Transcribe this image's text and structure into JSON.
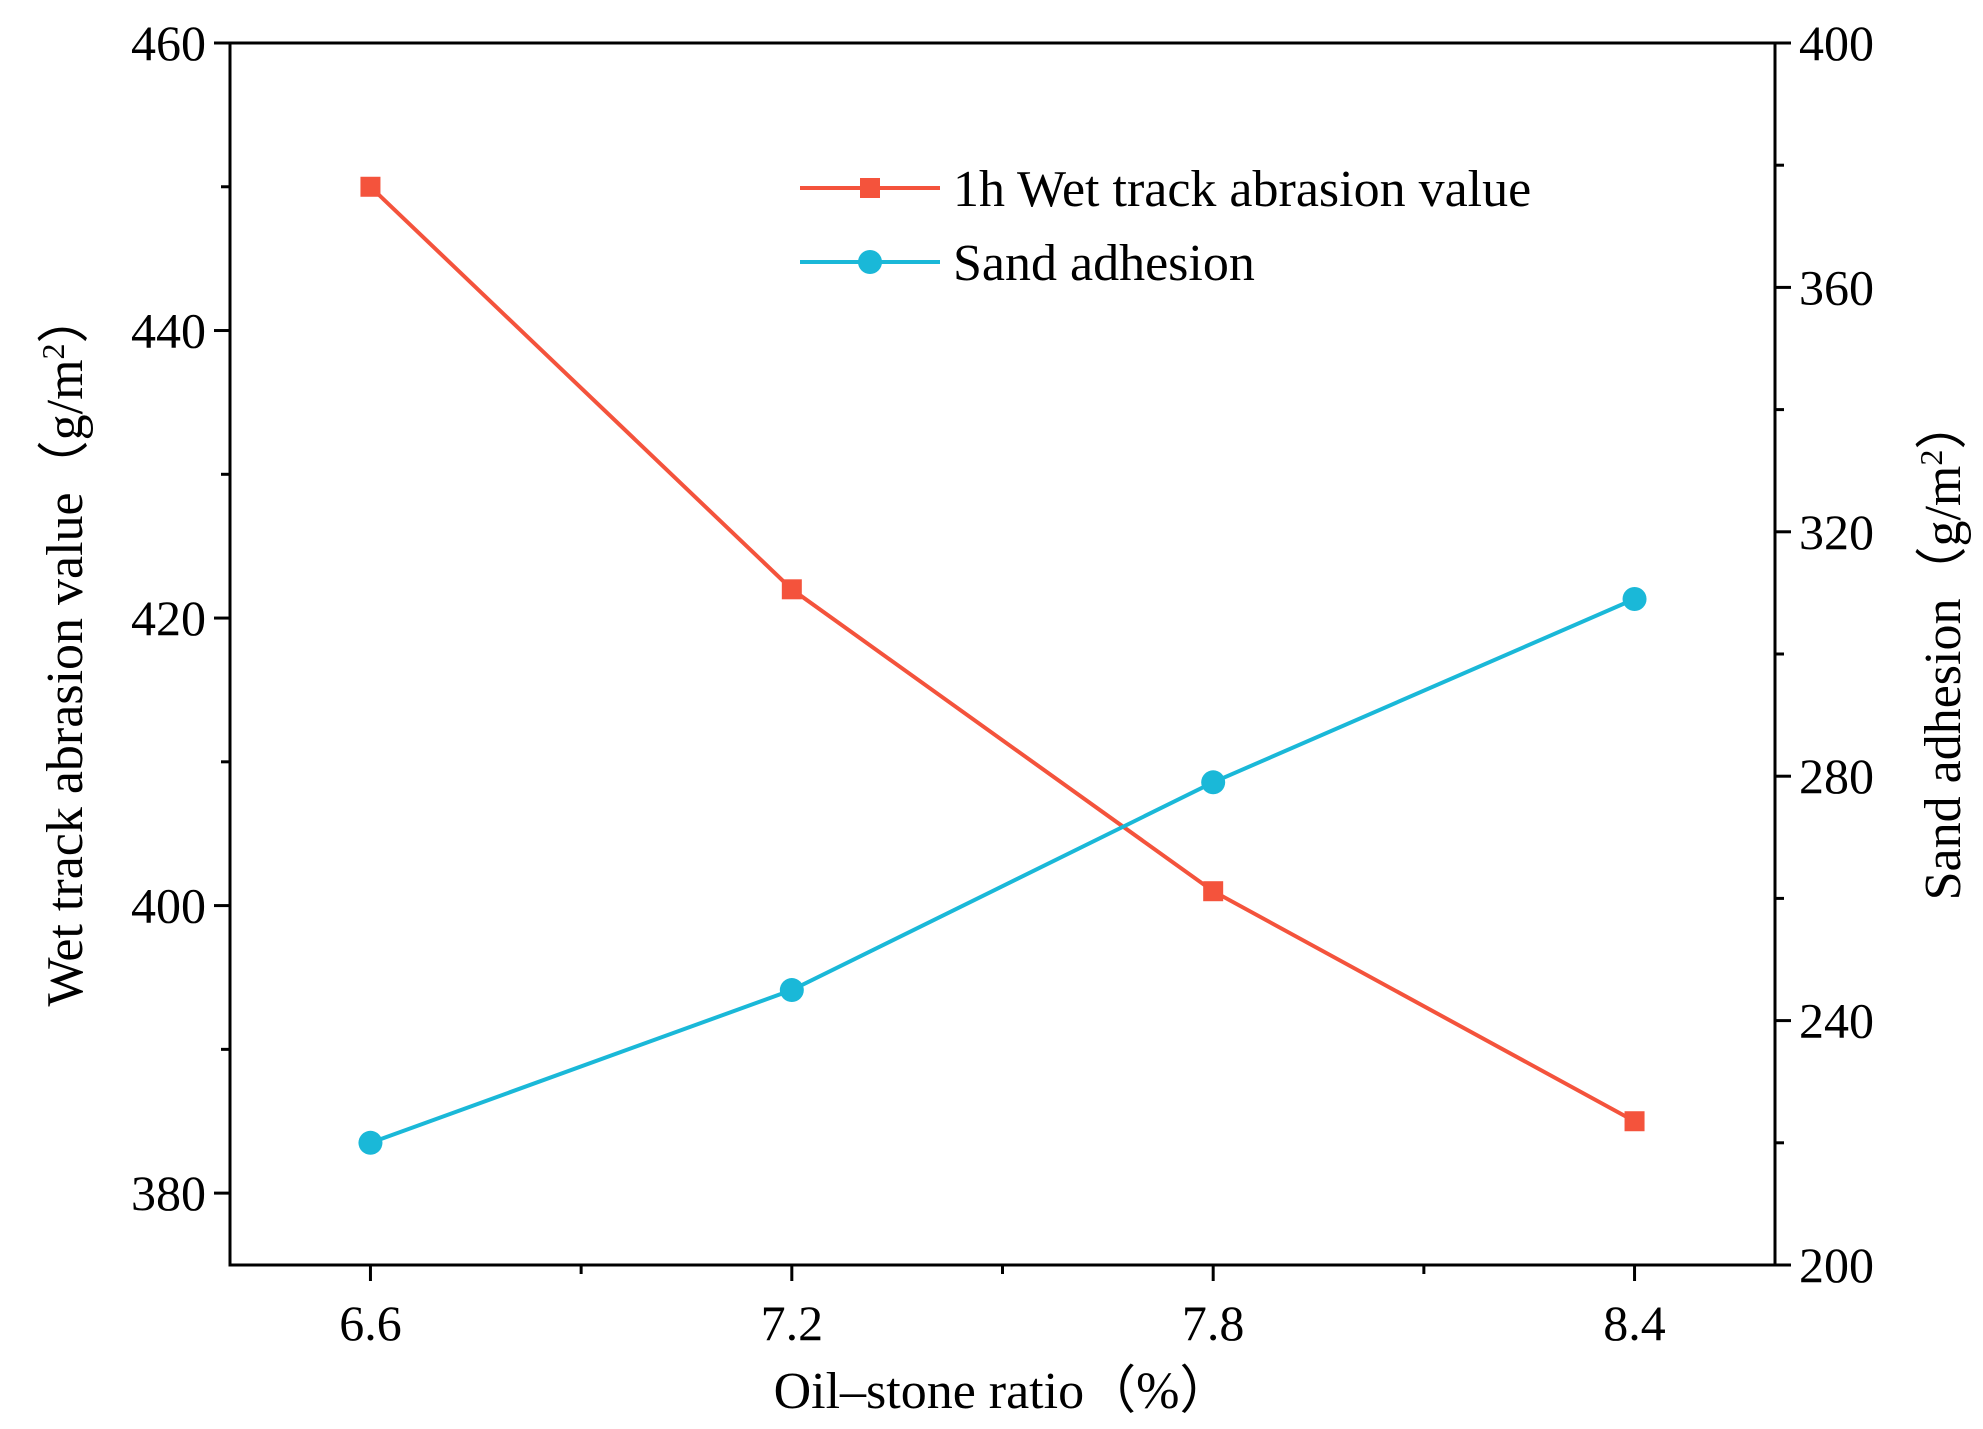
{
  "chart_data": {
    "type": "line",
    "x": [
      6.6,
      7.2,
      7.8,
      8.4
    ],
    "x_tick_labels": [
      "6.6",
      "7.2",
      "7.8",
      "8.4"
    ],
    "xlim": [
      6.4,
      8.6
    ],
    "xlabel": "Oil–stone ratio（%）",
    "left_axis": {
      "label_main": "Wet track abrasion value（g/m",
      "label_sup": "2",
      "label_end": "）",
      "ylim": [
        375,
        460
      ],
      "ticks": [
        380,
        400,
        420,
        440,
        460
      ],
      "tick_labels": [
        "380",
        "400",
        "420",
        "440",
        "460"
      ],
      "minor_ticks": [
        390,
        410,
        430,
        450
      ]
    },
    "right_axis": {
      "label_main": "Sand adhesion（g/m",
      "label_sup": "2",
      "label_end": "）",
      "ylim": [
        200,
        400
      ],
      "ticks": [
        200,
        240,
        280,
        320,
        360,
        400
      ],
      "tick_labels": [
        "200",
        "240",
        "280",
        "320",
        "360",
        "400"
      ],
      "minor_ticks": [
        220,
        260,
        300,
        340,
        380
      ]
    },
    "series": [
      {
        "name": "1h Wet track abrasion value",
        "axis": "left",
        "marker": "square",
        "color": "#f4533c",
        "values": [
          450,
          422,
          401,
          385
        ]
      },
      {
        "name": "Sand adhesion",
        "axis": "right",
        "marker": "circle",
        "color": "#1ab8d8",
        "values": [
          220,
          245,
          279,
          309
        ]
      }
    ],
    "legend_position": "top-right"
  }
}
